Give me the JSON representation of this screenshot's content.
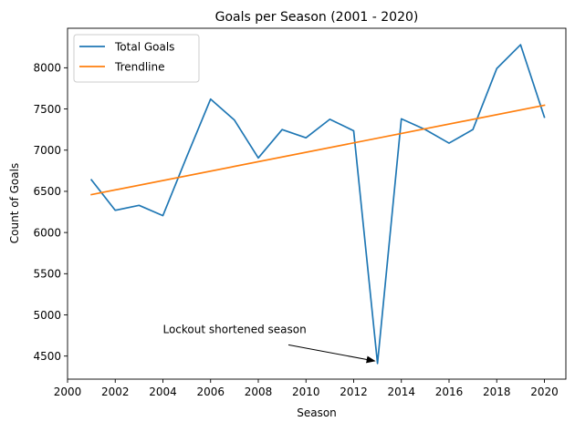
{
  "chart_data": {
    "type": "line",
    "title": "Goals per Season (2001 - 2020)",
    "xlabel": "Season",
    "ylabel": "Count of Goals",
    "xlim": [
      2000,
      2020.9
    ],
    "ylim": [
      4220,
      8480
    ],
    "xticks": [
      2000,
      2002,
      2004,
      2006,
      2008,
      2010,
      2012,
      2014,
      2016,
      2018,
      2020
    ],
    "yticks": [
      4500,
      5000,
      5500,
      6000,
      6500,
      7000,
      7500,
      8000
    ],
    "legend_position": "upper-left",
    "grid": false,
    "series": [
      {
        "name": "Total Goals",
        "color": "#1f77b4",
        "x": [
          2001,
          2002,
          2003,
          2004,
          2005,
          2006,
          2007,
          2008,
          2009,
          2010,
          2011,
          2012,
          2013,
          2014,
          2015,
          2016,
          2017,
          2018,
          2019,
          2020
        ],
        "y": [
          6640,
          6270,
          6330,
          6205,
          6920,
          7620,
          7365,
          6905,
          7250,
          7150,
          7375,
          7235,
          4410,
          7380,
          7250,
          7085,
          7250,
          7990,
          8280,
          7400
        ]
      },
      {
        "name": "Trendline",
        "color": "#ff7f0e",
        "x": [
          2001,
          2020
        ],
        "y": [
          6460,
          7545
        ]
      }
    ],
    "annotations": [
      {
        "text": "Lockout shortened season",
        "xy": [
          2013,
          4440
        ],
        "text_anchor_point": [
          2004,
          4780
        ]
      }
    ]
  }
}
